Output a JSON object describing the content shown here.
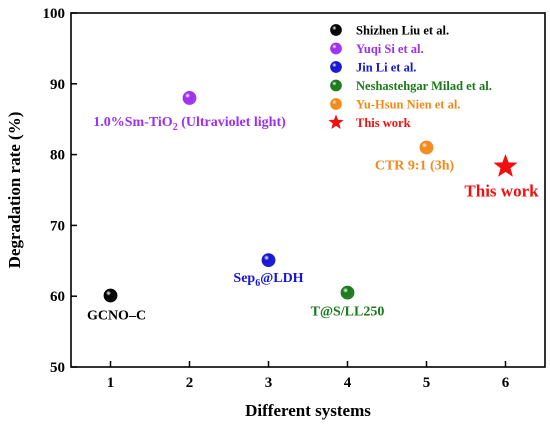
{
  "chart_data": {
    "type": "scatter",
    "xlabel": "Different systems",
    "ylabel": "Degradation rate (%)",
    "xlim": [
      0.5,
      6.5
    ],
    "ylim": [
      50,
      100
    ],
    "xticks": [
      "1",
      "2",
      "3",
      "4",
      "5",
      "6"
    ],
    "yticks": [
      "50",
      "60",
      "70",
      "80",
      "90",
      "100"
    ],
    "grid": false,
    "legend_position": "top-right",
    "series": [
      {
        "name": "Shizhen Liu et al.",
        "color": "#000000",
        "marker": "sphere",
        "x": 1,
        "y": 60.1,
        "label": "GCNO–C",
        "label_sub": "",
        "label_tail": ""
      },
      {
        "name": "Yuqi Si et al.",
        "color": "#9B30F2",
        "marker": "sphere",
        "x": 2,
        "y": 88.0,
        "label": "1.0%Sm-TiO",
        "label_sub": "2",
        "label_tail": " (Ultraviolet light)"
      },
      {
        "name": "Jin Li et al.",
        "color": "#1515D6",
        "marker": "sphere",
        "x": 3,
        "y": 65.1,
        "label": "Sep",
        "label_sub": "6",
        "label_tail": "@LDH"
      },
      {
        "name": "Neshastehgar Milad et al.",
        "color": "#1A7A1A",
        "marker": "sphere",
        "x": 4,
        "y": 60.5,
        "label": "T@S/LL250",
        "label_sub": "",
        "label_tail": ""
      },
      {
        "name": "Yu-Hsun Nien et al.",
        "color": "#F28A1A",
        "marker": "sphere",
        "x": 5,
        "y": 81.0,
        "label": "CTR 9:1 (3h)",
        "label_sub": "",
        "label_tail": ""
      },
      {
        "name": "This work",
        "color": "#F01010",
        "marker": "star",
        "x": 6,
        "y": 78.3,
        "label": "This work",
        "label_sub": "",
        "label_tail": ""
      }
    ]
  }
}
